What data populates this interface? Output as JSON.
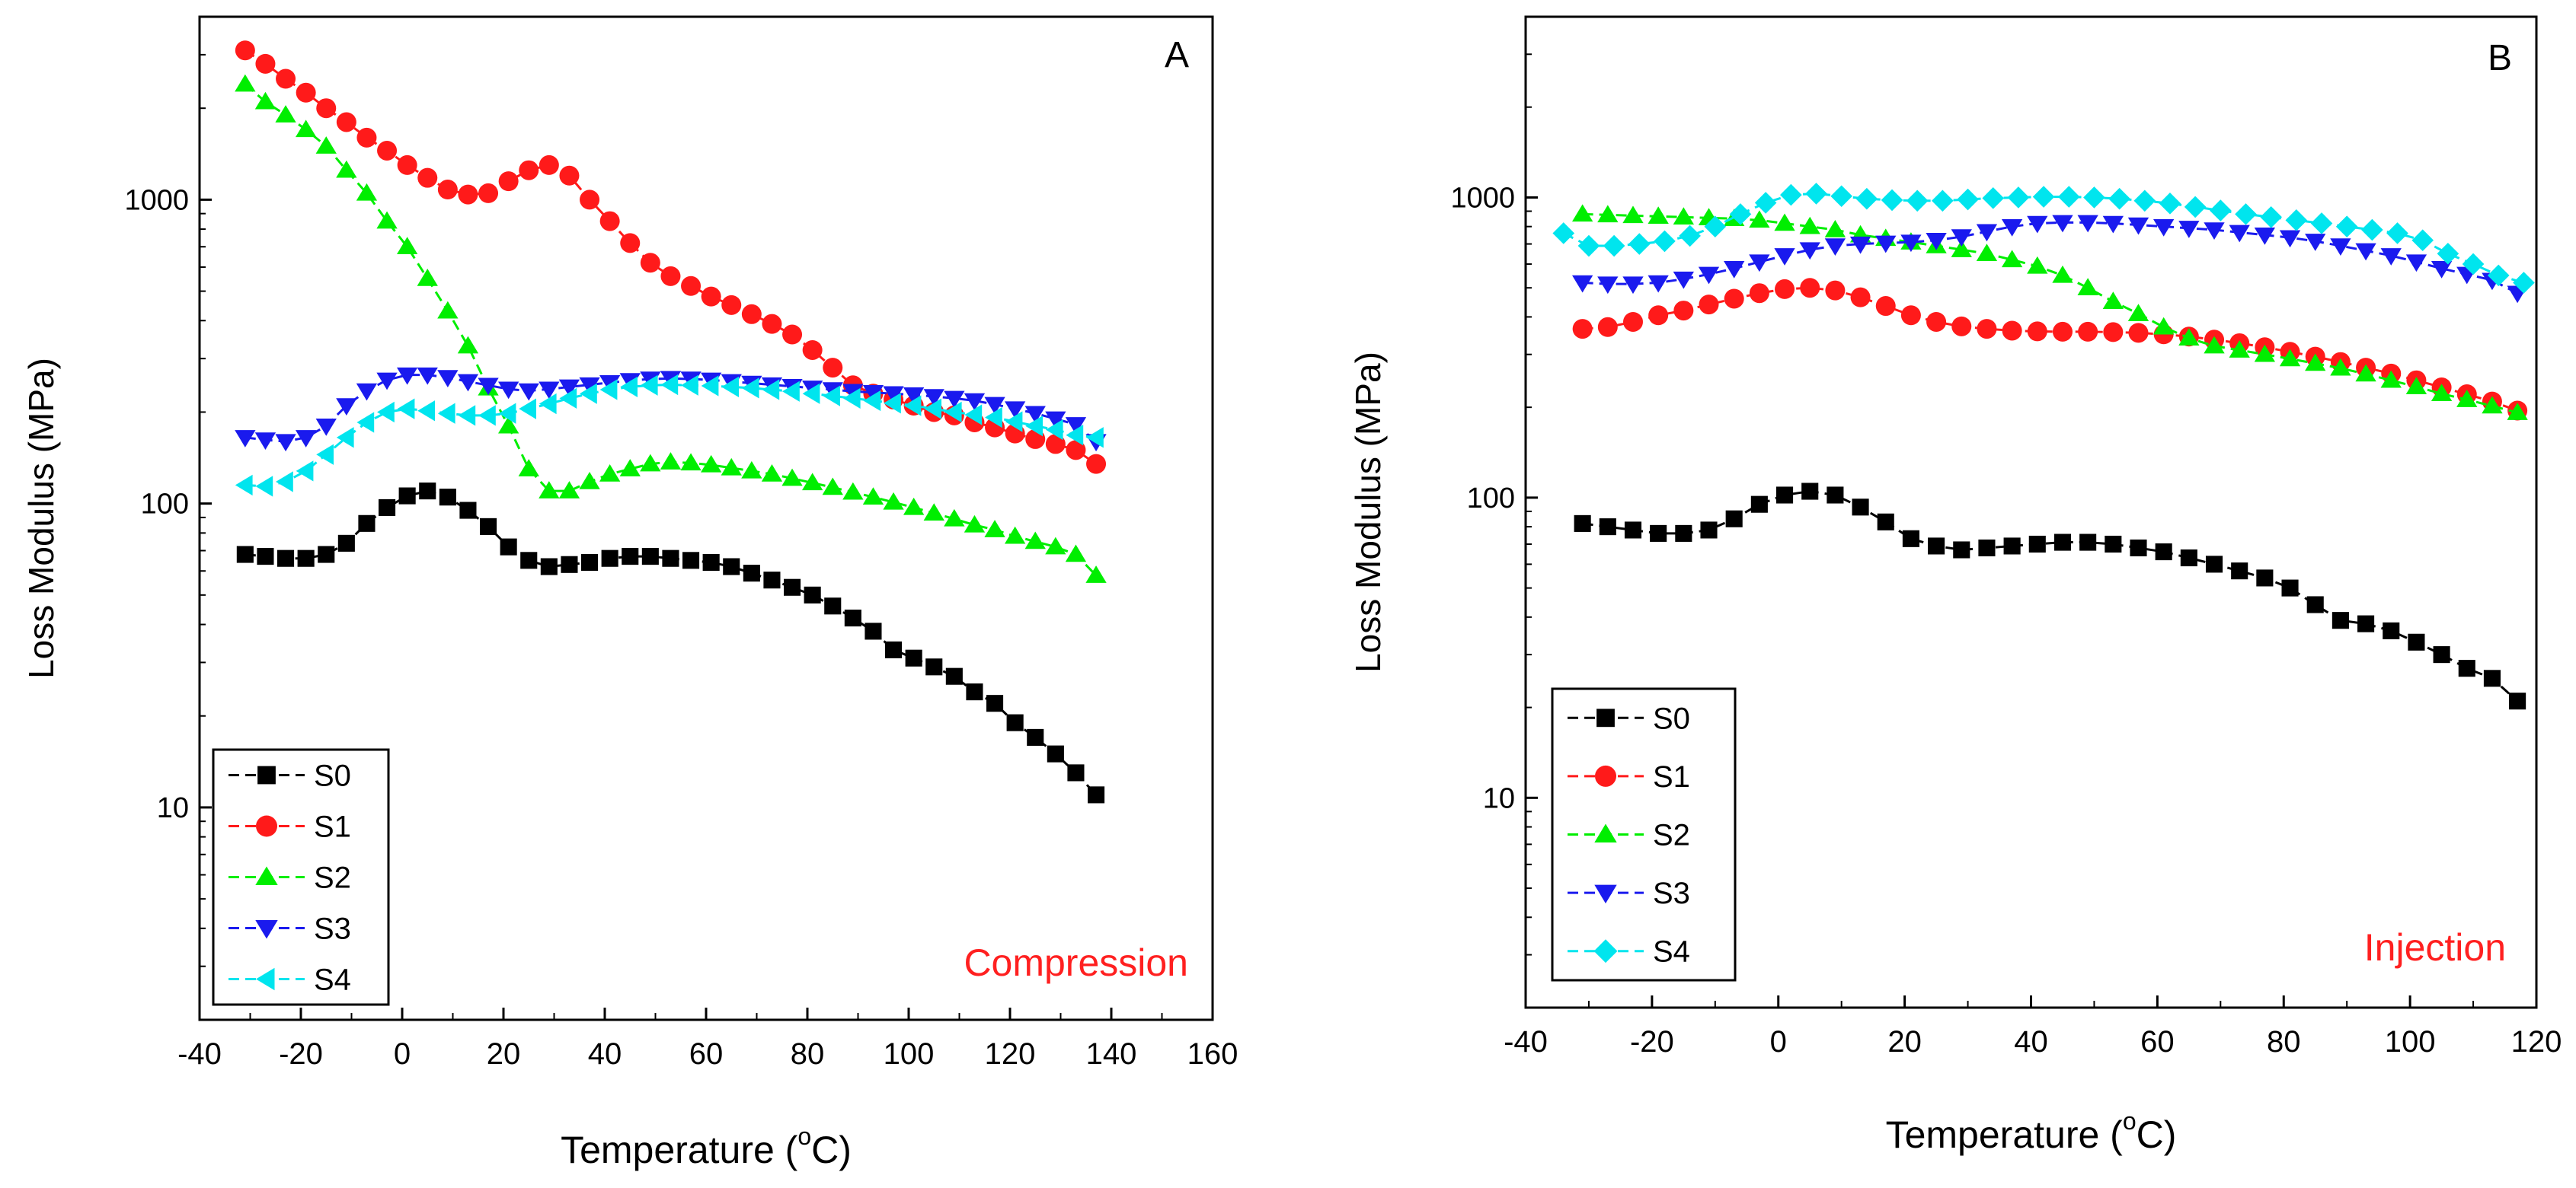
{
  "chart_data": [
    {
      "type": "scatter",
      "panel_label": "A",
      "annotation": "Compression",
      "annotation_color": "#ff2020",
      "xlabel_text": "Temperature (",
      "xlabel_unit": "C)",
      "xlabel_degree": "o",
      "ylabel": "Loss Modulus (MPa)",
      "xlim": [
        -40,
        160
      ],
      "ylim": [
        2,
        4000
      ],
      "yscale": "log",
      "xticks": [
        -40,
        -20,
        0,
        20,
        40,
        60,
        80,
        100,
        120,
        140,
        160
      ],
      "xtick_labels": [
        "-40",
        "-20",
        "0",
        "20",
        "40",
        "60",
        "80",
        "100",
        "120",
        "140",
        "160"
      ],
      "yticks": [
        10,
        100,
        1000
      ],
      "ytick_labels": [
        "10",
        "100",
        "1000"
      ],
      "legend_position": "bottom-left",
      "series": [
        {
          "name": "S0",
          "color": "#000000",
          "marker": "square",
          "x": [
            -31,
            -27,
            -23,
            -19,
            -15,
            -11,
            -7,
            -3,
            1,
            5,
            9,
            13,
            17,
            21,
            25,
            29,
            33,
            37,
            41,
            45,
            49,
            53,
            57,
            61,
            65,
            69,
            73,
            77,
            81,
            85,
            89,
            93,
            97,
            101,
            105,
            109,
            113,
            117,
            121,
            125,
            129,
            133,
            137
          ],
          "y": [
            68,
            67,
            66,
            66,
            68,
            74,
            86,
            97,
            106,
            110,
            105,
            95,
            84,
            72,
            65,
            62,
            63,
            64,
            66,
            67,
            67,
            66,
            65,
            64,
            62,
            59,
            56,
            53,
            50,
            46,
            42,
            38,
            33,
            31,
            29,
            27,
            24,
            22,
            19,
            17,
            15,
            13,
            11
          ]
        },
        {
          "name": "S1",
          "color": "#ff1a1a",
          "marker": "circle",
          "x": [
            -31,
            -27,
            -23,
            -19,
            -15,
            -11,
            -7,
            -3,
            1,
            5,
            9,
            13,
            17,
            21,
            25,
            29,
            33,
            37,
            41,
            45,
            49,
            53,
            57,
            61,
            65,
            69,
            73,
            77,
            81,
            85,
            89,
            93,
            97,
            101,
            105,
            109,
            113,
            117,
            121,
            125,
            129,
            133,
            137
          ],
          "y": [
            3100,
            2800,
            2500,
            2250,
            2000,
            1800,
            1600,
            1450,
            1300,
            1180,
            1080,
            1040,
            1050,
            1150,
            1250,
            1300,
            1200,
            1000,
            850,
            720,
            620,
            560,
            520,
            480,
            450,
            420,
            390,
            360,
            320,
            280,
            245,
            230,
            220,
            210,
            200,
            195,
            185,
            178,
            170,
            163,
            157,
            150,
            135
          ]
        },
        {
          "name": "S2",
          "color": "#00ee00",
          "marker": "triangle-up",
          "x": [
            -31,
            -27,
            -23,
            -19,
            -15,
            -11,
            -7,
            -3,
            1,
            5,
            9,
            13,
            17,
            21,
            25,
            29,
            33,
            37,
            41,
            45,
            49,
            53,
            57,
            61,
            65,
            69,
            73,
            77,
            81,
            85,
            89,
            93,
            97,
            101,
            105,
            109,
            113,
            117,
            121,
            125,
            129,
            133,
            137
          ],
          "y": [
            2400,
            2100,
            1900,
            1700,
            1500,
            1250,
            1050,
            850,
            700,
            550,
            430,
            330,
            240,
            180,
            130,
            110,
            110,
            118,
            125,
            130,
            135,
            137,
            136,
            134,
            131,
            128,
            125,
            121,
            117,
            113,
            109,
            105,
            101,
            97,
            93,
            89,
            85,
            82,
            78,
            75,
            72,
            68,
            58
          ]
        },
        {
          "name": "S3",
          "color": "#1a1aee",
          "marker": "triangle-down",
          "x": [
            -31,
            -27,
            -23,
            -19,
            -15,
            -11,
            -7,
            -3,
            1,
            5,
            9,
            13,
            17,
            21,
            25,
            29,
            33,
            37,
            41,
            45,
            49,
            53,
            57,
            61,
            65,
            69,
            73,
            77,
            81,
            85,
            89,
            93,
            97,
            101,
            105,
            109,
            113,
            117,
            121,
            125,
            129,
            133,
            137
          ],
          "y": [
            165,
            162,
            160,
            165,
            180,
            210,
            235,
            255,
            265,
            265,
            260,
            252,
            245,
            238,
            235,
            238,
            242,
            246,
            250,
            254,
            257,
            258,
            257,
            255,
            252,
            249,
            246,
            243,
            240,
            237,
            234,
            232,
            230,
            228,
            225,
            222,
            218,
            212,
            205,
            198,
            190,
            182,
            160
          ]
        },
        {
          "name": "S4",
          "color": "#00e5ee",
          "marker": "triangle-left",
          "x": [
            -31,
            -27,
            -23,
            -19,
            -15,
            -11,
            -7,
            -3,
            1,
            5,
            9,
            13,
            17,
            21,
            25,
            29,
            33,
            37,
            41,
            45,
            49,
            53,
            57,
            61,
            65,
            69,
            73,
            77,
            81,
            85,
            89,
            93,
            97,
            101,
            105,
            109,
            113,
            117,
            121,
            125,
            129,
            133,
            137
          ],
          "y": [
            115,
            114,
            118,
            128,
            145,
            165,
            185,
            200,
            205,
            202,
            198,
            195,
            195,
            198,
            205,
            213,
            222,
            230,
            237,
            242,
            245,
            246,
            245,
            244,
            242,
            240,
            237,
            234,
            230,
            226,
            222,
            218,
            214,
            210,
            205,
            200,
            196,
            192,
            186,
            180,
            175,
            168,
            165
          ]
        }
      ]
    },
    {
      "type": "scatter",
      "panel_label": "B",
      "annotation": "Injection",
      "annotation_color": "#ff2020",
      "xlabel_text": "Temperature (",
      "xlabel_unit": "C)",
      "xlabel_degree": "o",
      "ylabel": "Loss Modulus (MPa)",
      "xlim": [
        -40,
        120
      ],
      "ylim": [
        2,
        4000
      ],
      "yscale": "log",
      "xticks": [
        -40,
        -20,
        0,
        20,
        40,
        60,
        80,
        100,
        120
      ],
      "xtick_labels": [
        "-40",
        "-20",
        "0",
        "20",
        "40",
        "60",
        "80",
        "100",
        "120"
      ],
      "yticks": [
        10,
        100,
        1000
      ],
      "ytick_labels": [
        "10",
        "100",
        "1000"
      ],
      "legend_position": "bottom-left",
      "series": [
        {
          "name": "S0",
          "color": "#000000",
          "marker": "square",
          "x": [
            -31,
            -27,
            -23,
            -19,
            -15,
            -11,
            -7,
            -3,
            1,
            5,
            9,
            13,
            17,
            21,
            25,
            29,
            33,
            37,
            41,
            45,
            49,
            53,
            57,
            61,
            65,
            69,
            73,
            77,
            81,
            85,
            89,
            93,
            97,
            101,
            105,
            109,
            113,
            117
          ],
          "y": [
            82,
            80,
            78,
            76,
            76,
            78,
            85,
            95,
            102,
            105,
            102,
            93,
            83,
            73,
            69,
            67,
            68,
            69,
            70,
            71,
            71,
            70,
            68,
            66,
            63,
            60,
            57,
            54,
            50,
            44,
            39,
            38,
            36,
            33,
            30,
            27,
            25,
            21
          ]
        },
        {
          "name": "S1",
          "color": "#ff1a1a",
          "marker": "circle",
          "x": [
            -31,
            -27,
            -23,
            -19,
            -15,
            -11,
            -7,
            -3,
            1,
            5,
            9,
            13,
            17,
            21,
            25,
            29,
            33,
            37,
            41,
            45,
            49,
            53,
            57,
            61,
            65,
            69,
            73,
            77,
            81,
            85,
            89,
            93,
            97,
            101,
            105,
            109,
            113,
            117
          ],
          "y": [
            365,
            370,
            385,
            405,
            420,
            440,
            460,
            480,
            495,
            500,
            490,
            465,
            435,
            405,
            385,
            372,
            365,
            360,
            358,
            357,
            357,
            356,
            354,
            350,
            344,
            336,
            327,
            317,
            306,
            295,
            283,
            271,
            259,
            246,
            233,
            221,
            209,
            195
          ]
        },
        {
          "name": "S2",
          "color": "#00ee00",
          "marker": "triangle-up",
          "x": [
            -31,
            -27,
            -23,
            -19,
            -15,
            -11,
            -7,
            -3,
            1,
            5,
            9,
            13,
            17,
            21,
            25,
            29,
            33,
            37,
            41,
            45,
            49,
            53,
            57,
            61,
            65,
            69,
            73,
            77,
            81,
            85,
            89,
            93,
            97,
            101,
            105,
            109,
            113,
            117
          ],
          "y": [
            880,
            875,
            870,
            865,
            860,
            855,
            850,
            840,
            820,
            800,
            780,
            750,
            730,
            710,
            690,
            670,
            650,
            620,
            590,
            550,
            500,
            450,
            410,
            370,
            340,
            320,
            310,
            300,
            290,
            280,
            270,
            258,
            246,
            234,
            222,
            212,
            202,
            192
          ]
        },
        {
          "name": "S3",
          "color": "#1a1aee",
          "marker": "triangle-down",
          "x": [
            -31,
            -27,
            -23,
            -19,
            -15,
            -11,
            -7,
            -3,
            1,
            5,
            9,
            13,
            17,
            21,
            25,
            29,
            33,
            37,
            41,
            45,
            49,
            53,
            57,
            61,
            65,
            69,
            73,
            77,
            81,
            85,
            89,
            93,
            97,
            101,
            105,
            109,
            113,
            117
          ],
          "y": [
            520,
            515,
            515,
            520,
            535,
            555,
            580,
            610,
            640,
            670,
            690,
            700,
            705,
            710,
            720,
            740,
            770,
            800,
            820,
            825,
            825,
            820,
            810,
            800,
            790,
            780,
            765,
            750,
            735,
            715,
            690,
            665,
            640,
            610,
            580,
            555,
            530,
            480
          ]
        },
        {
          "name": "S4",
          "color": "#00e5ee",
          "marker": "diamond",
          "x": [
            -34,
            -30,
            -26,
            -22,
            -18,
            -14,
            -10,
            -6,
            -2,
            2,
            6,
            10,
            14,
            18,
            22,
            26,
            30,
            34,
            38,
            42,
            46,
            50,
            54,
            58,
            62,
            66,
            70,
            74,
            78,
            82,
            86,
            90,
            94,
            98,
            102,
            106,
            110,
            114,
            118
          ],
          "y": [
            760,
            690,
            690,
            700,
            715,
            745,
            800,
            880,
            960,
            1020,
            1030,
            1010,
            990,
            980,
            975,
            975,
            985,
            995,
            1000,
            1005,
            1005,
            1000,
            990,
            975,
            955,
            930,
            905,
            880,
            860,
            840,
            820,
            800,
            780,
            760,
            720,
            650,
            600,
            550,
            520
          ]
        }
      ]
    }
  ]
}
